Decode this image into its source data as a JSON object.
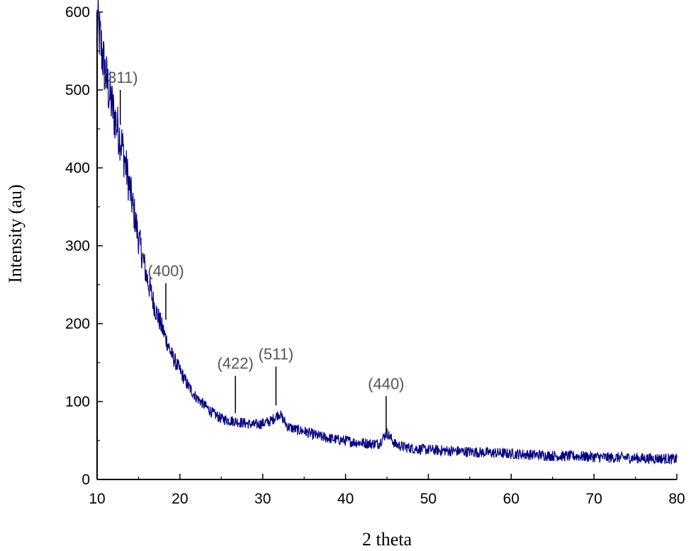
{
  "chart_data": {
    "type": "line",
    "title": "",
    "xlabel": "2 theta",
    "ylabel": "Intensity (au)",
    "xlim": [
      10,
      80
    ],
    "ylim": [
      0,
      600
    ],
    "xticks": [
      "10",
      "20",
      "30",
      "40",
      "50",
      "60",
      "70",
      "80"
    ],
    "yticks": [
      "0",
      "100",
      "200",
      "300",
      "400",
      "500",
      "600"
    ],
    "grid": false,
    "legend": "none",
    "series_color": "#000080",
    "peak_color": "#000000",
    "series": [
      {
        "x": [
          10,
          11,
          12,
          13,
          14,
          15,
          16,
          17,
          18,
          19,
          20,
          21,
          22,
          23,
          24,
          25,
          26,
          27,
          28,
          29,
          30,
          31,
          32,
          33,
          34,
          35,
          36,
          37,
          38,
          39,
          40,
          41,
          42,
          43,
          44,
          45,
          46,
          47,
          48,
          49,
          50,
          52,
          54,
          56,
          58,
          60,
          62,
          64,
          66,
          68,
          70,
          72,
          74,
          76,
          78,
          80
        ],
        "y": [
          590,
          520,
          470,
          430,
          370,
          310,
          260,
          220,
          190,
          160,
          140,
          120,
          105,
          95,
          85,
          78,
          76,
          74,
          72,
          70,
          72,
          75,
          85,
          68,
          64,
          62,
          58,
          55,
          53,
          51,
          50,
          48,
          47,
          46,
          46,
          60,
          45,
          42,
          40,
          39,
          38,
          37,
          36,
          35,
          34,
          33,
          32,
          31,
          30,
          30,
          29,
          28,
          28,
          27,
          27,
          26
        ]
      }
    ],
    "annotations": [
      {
        "label": "(311)",
        "x": 12.8,
        "y_low": 455,
        "y_high": 500
      },
      {
        "label": "(400)",
        "x": 18.3,
        "y_low": 205,
        "y_high": 252
      },
      {
        "label": "(422)",
        "x": 26.7,
        "y_low": 85,
        "y_high": 133
      },
      {
        "label": "(511)",
        "x": 31.6,
        "y_low": 95,
        "y_high": 145
      },
      {
        "label": "(440)",
        "x": 44.9,
        "y_low": 60,
        "y_high": 107
      }
    ]
  }
}
